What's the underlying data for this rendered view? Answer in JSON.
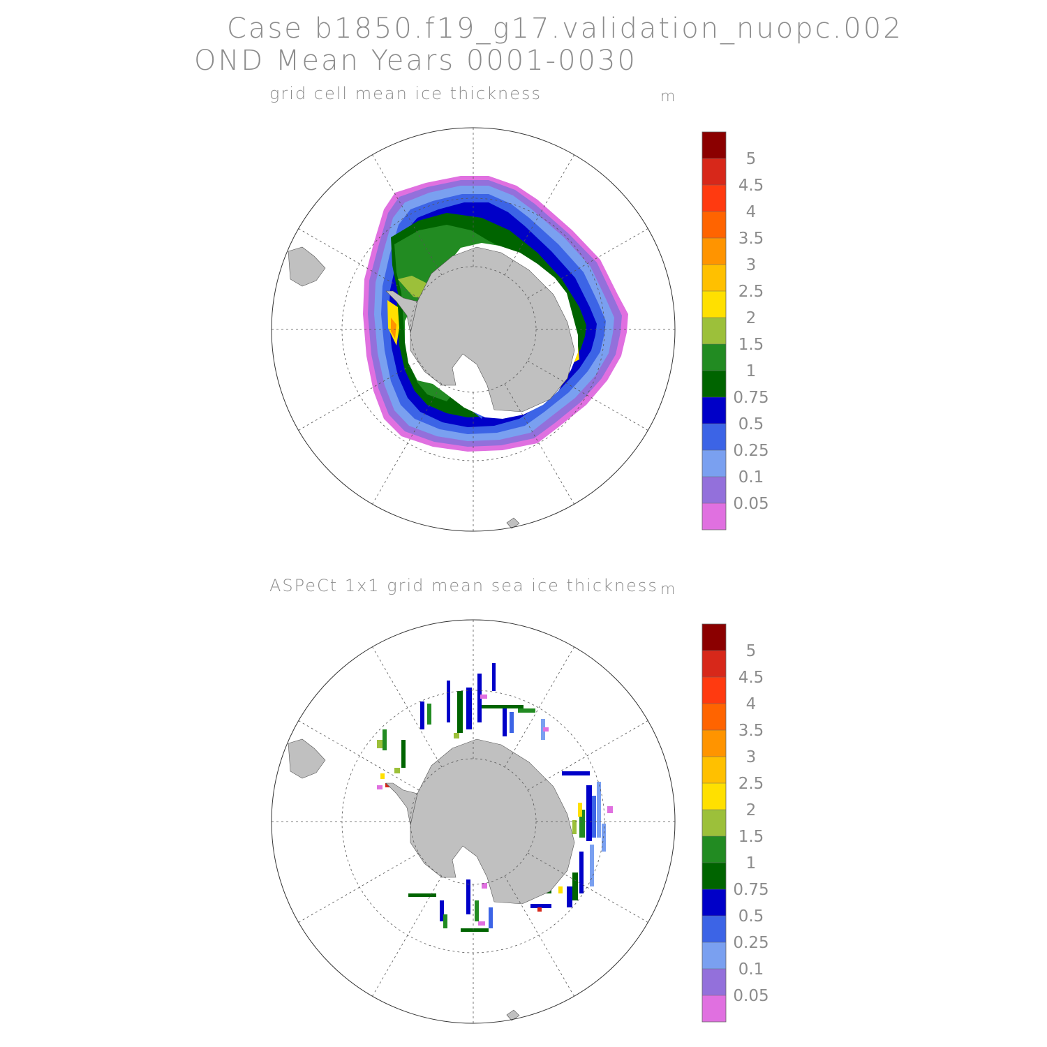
{
  "header": {
    "case_title": "Case b1850.f19_g17.validation_nuopc.002",
    "period_title": "OND Mean    Years 0001-0030"
  },
  "panels": [
    {
      "title": "grid cell mean ice thickness",
      "unit": "m",
      "field": "model"
    },
    {
      "title": "ASPeCt 1x1 grid mean sea ice thickness",
      "unit": "m",
      "field": "observations"
    }
  ],
  "colorbar": {
    "labels": [
      "5",
      "4.5",
      "4",
      "3.5",
      "3",
      "2.5",
      "2",
      "1.5",
      "1",
      "0.75",
      "0.5",
      "0.25",
      "0.1",
      "0.05"
    ],
    "colors": [
      "#8b0000",
      "#d7281a",
      "#ff3a10",
      "#ff6400",
      "#ff9400",
      "#ffc000",
      "#ffe000",
      "#9cc03a",
      "#228b22",
      "#006400",
      "#0000c8",
      "#3c64e6",
      "#7aa0f0",
      "#9370db",
      "#e070e0"
    ]
  },
  "map": {
    "projection": "south polar stereographic",
    "land_color": "#c0c0c0",
    "graticule": "dashed"
  }
}
